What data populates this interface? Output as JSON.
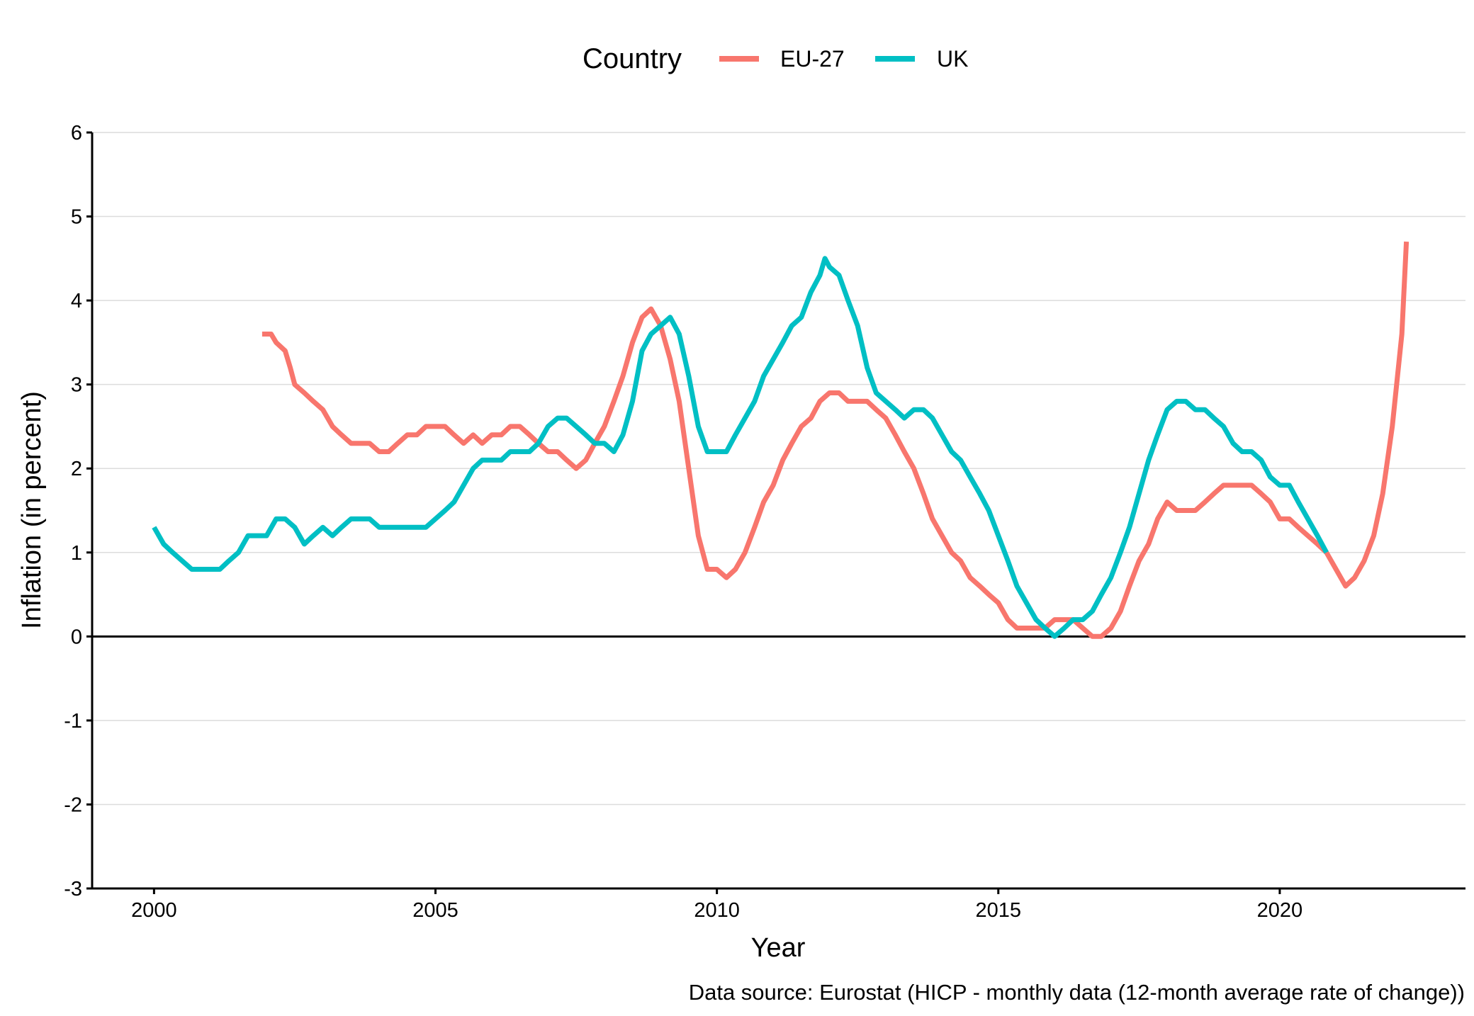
{
  "chart_data": {
    "type": "line",
    "title": "",
    "xlabel": "Year",
    "ylabel": "Inflation (in percent)",
    "caption": "Data source: Eurostat (HICP - monthly data (12-month average rate of change))",
    "legend_title": "Country",
    "legend_position": "top",
    "xlim": [
      1998.9,
      2023.3
    ],
    "ylim": [
      -3,
      6
    ],
    "x_ticks": [
      2000,
      2005,
      2010,
      2015,
      2020
    ],
    "x_tick_labels": [
      "2000",
      "2005",
      "2010",
      "2015",
      "2020"
    ],
    "y_ticks": [
      -3,
      -2,
      -1,
      0,
      1,
      2,
      3,
      4,
      5,
      6
    ],
    "y_tick_labels": [
      "-3",
      "-2",
      "-1",
      "0",
      "1",
      "2",
      "3",
      "4",
      "5",
      "6"
    ],
    "grid": "horizontal major gridlines",
    "zero_line": true,
    "series": [
      {
        "name": "EU-27",
        "color": "#F8766D",
        "x": [
          2001.92,
          2002.08,
          2002.17,
          2002.33,
          2002.42,
          2002.5,
          2002.67,
          2002.83,
          2003.0,
          2003.17,
          2003.33,
          2003.5,
          2003.67,
          2003.83,
          2004.0,
          2004.17,
          2004.33,
          2004.5,
          2004.67,
          2004.83,
          2005.0,
          2005.17,
          2005.33,
          2005.5,
          2005.67,
          2005.83,
          2006.0,
          2006.17,
          2006.33,
          2006.5,
          2006.67,
          2006.83,
          2007.0,
          2007.17,
          2007.33,
          2007.5,
          2007.67,
          2007.83,
          2008.0,
          2008.17,
          2008.33,
          2008.5,
          2008.67,
          2008.83,
          2009.0,
          2009.17,
          2009.33,
          2009.5,
          2009.67,
          2009.83,
          2010.0,
          2010.17,
          2010.33,
          2010.5,
          2010.67,
          2010.83,
          2011.0,
          2011.17,
          2011.33,
          2011.5,
          2011.67,
          2011.83,
          2012.0,
          2012.17,
          2012.33,
          2012.5,
          2012.67,
          2012.83,
          2013.0,
          2013.17,
          2013.33,
          2013.5,
          2013.67,
          2013.83,
          2014.0,
          2014.17,
          2014.33,
          2014.5,
          2014.67,
          2014.83,
          2015.0,
          2015.17,
          2015.33,
          2015.5,
          2015.67,
          2015.83,
          2016.0,
          2016.17,
          2016.33,
          2016.5,
          2016.67,
          2016.83,
          2017.0,
          2017.17,
          2017.33,
          2017.5,
          2017.67,
          2017.83,
          2018.0,
          2018.17,
          2018.33,
          2018.5,
          2018.67,
          2018.83,
          2019.0,
          2019.17,
          2019.33,
          2019.5,
          2019.67,
          2019.83,
          2020.0,
          2020.17,
          2020.33,
          2020.5,
          2020.67,
          2020.83,
          2021.0,
          2021.17,
          2021.33,
          2021.5,
          2021.67,
          2021.83,
          2022.0,
          2022.17,
          2022.25
        ],
        "y": [
          3.6,
          3.6,
          3.5,
          3.4,
          3.2,
          3.0,
          2.9,
          2.8,
          2.7,
          2.5,
          2.4,
          2.3,
          2.3,
          2.3,
          2.2,
          2.2,
          2.3,
          2.4,
          2.4,
          2.5,
          2.5,
          2.5,
          2.4,
          2.3,
          2.4,
          2.3,
          2.4,
          2.4,
          2.5,
          2.5,
          2.4,
          2.3,
          2.2,
          2.2,
          2.1,
          2.0,
          2.1,
          2.3,
          2.5,
          2.8,
          3.1,
          3.5,
          3.8,
          3.9,
          3.7,
          3.3,
          2.8,
          2.0,
          1.2,
          0.8,
          0.8,
          0.7,
          0.8,
          1.0,
          1.3,
          1.6,
          1.8,
          2.1,
          2.3,
          2.5,
          2.6,
          2.8,
          2.9,
          2.9,
          2.8,
          2.8,
          2.8,
          2.7,
          2.6,
          2.4,
          2.2,
          2.0,
          1.7,
          1.4,
          1.2,
          1.0,
          0.9,
          0.7,
          0.6,
          0.5,
          0.4,
          0.2,
          0.1,
          0.1,
          0.1,
          0.1,
          0.2,
          0.2,
          0.2,
          0.1,
          0.0,
          0.0,
          0.1,
          0.3,
          0.6,
          0.9,
          1.1,
          1.4,
          1.6,
          1.5,
          1.5,
          1.5,
          1.6,
          1.7,
          1.8,
          1.8,
          1.8,
          1.8,
          1.7,
          1.6,
          1.4,
          1.4,
          1.3,
          1.2,
          1.1,
          1.0,
          0.8,
          0.6,
          0.7,
          0.9,
          1.2,
          1.7,
          2.5,
          3.6,
          4.7
        ]
      },
      {
        "name": "UK",
        "color": "#00BFC4",
        "x": [
          2000.0,
          2000.17,
          2000.33,
          2000.5,
          2000.67,
          2000.83,
          2001.0,
          2001.17,
          2001.33,
          2001.5,
          2001.67,
          2001.83,
          2002.0,
          2002.17,
          2002.33,
          2002.5,
          2002.67,
          2002.83,
          2003.0,
          2003.17,
          2003.33,
          2003.5,
          2003.67,
          2003.83,
          2004.0,
          2004.17,
          2004.33,
          2004.5,
          2004.67,
          2004.83,
          2005.0,
          2005.17,
          2005.33,
          2005.5,
          2005.67,
          2005.83,
          2006.0,
          2006.17,
          2006.33,
          2006.5,
          2006.67,
          2006.83,
          2007.0,
          2007.17,
          2007.33,
          2007.5,
          2007.67,
          2007.83,
          2008.0,
          2008.17,
          2008.33,
          2008.5,
          2008.67,
          2008.83,
          2009.0,
          2009.17,
          2009.33,
          2009.5,
          2009.67,
          2009.83,
          2010.0,
          2010.17,
          2010.33,
          2010.5,
          2010.67,
          2010.83,
          2011.0,
          2011.17,
          2011.33,
          2011.5,
          2011.67,
          2011.83,
          2011.92,
          2012.0,
          2012.17,
          2012.33,
          2012.5,
          2012.67,
          2012.83,
          2013.0,
          2013.17,
          2013.33,
          2013.5,
          2013.67,
          2013.83,
          2014.0,
          2014.17,
          2014.33,
          2014.5,
          2014.67,
          2014.83,
          2015.0,
          2015.17,
          2015.33,
          2015.5,
          2015.67,
          2015.83,
          2016.0,
          2016.17,
          2016.33,
          2016.5,
          2016.67,
          2016.83,
          2017.0,
          2017.17,
          2017.33,
          2017.5,
          2017.67,
          2017.83,
          2018.0,
          2018.17,
          2018.33,
          2018.5,
          2018.67,
          2018.83,
          2019.0,
          2019.17,
          2019.33,
          2019.5,
          2019.67,
          2019.83,
          2020.0,
          2020.17,
          2020.33,
          2020.5,
          2020.67,
          2020.83
        ],
        "y": [
          1.3,
          1.1,
          1.0,
          0.9,
          0.8,
          0.8,
          0.8,
          0.8,
          0.9,
          1.0,
          1.2,
          1.2,
          1.2,
          1.4,
          1.4,
          1.3,
          1.1,
          1.2,
          1.3,
          1.2,
          1.3,
          1.4,
          1.4,
          1.4,
          1.3,
          1.3,
          1.3,
          1.3,
          1.3,
          1.3,
          1.4,
          1.5,
          1.6,
          1.8,
          2.0,
          2.1,
          2.1,
          2.1,
          2.2,
          2.2,
          2.2,
          2.3,
          2.5,
          2.6,
          2.6,
          2.5,
          2.4,
          2.3,
          2.3,
          2.2,
          2.4,
          2.8,
          3.4,
          3.6,
          3.7,
          3.8,
          3.6,
          3.1,
          2.5,
          2.2,
          2.2,
          2.2,
          2.4,
          2.6,
          2.8,
          3.1,
          3.3,
          3.5,
          3.7,
          3.8,
          4.1,
          4.3,
          4.5,
          4.4,
          4.3,
          4.0,
          3.7,
          3.2,
          2.9,
          2.8,
          2.7,
          2.6,
          2.7,
          2.7,
          2.6,
          2.4,
          2.2,
          2.1,
          1.9,
          1.7,
          1.5,
          1.2,
          0.9,
          0.6,
          0.4,
          0.2,
          0.1,
          0.0,
          0.1,
          0.2,
          0.2,
          0.3,
          0.5,
          0.7,
          1.0,
          1.3,
          1.7,
          2.1,
          2.4,
          2.7,
          2.8,
          2.8,
          2.7,
          2.7,
          2.6,
          2.5,
          2.3,
          2.2,
          2.2,
          2.1,
          1.9,
          1.8,
          1.8,
          1.6,
          1.4,
          1.2,
          1.0
        ]
      }
    ]
  }
}
